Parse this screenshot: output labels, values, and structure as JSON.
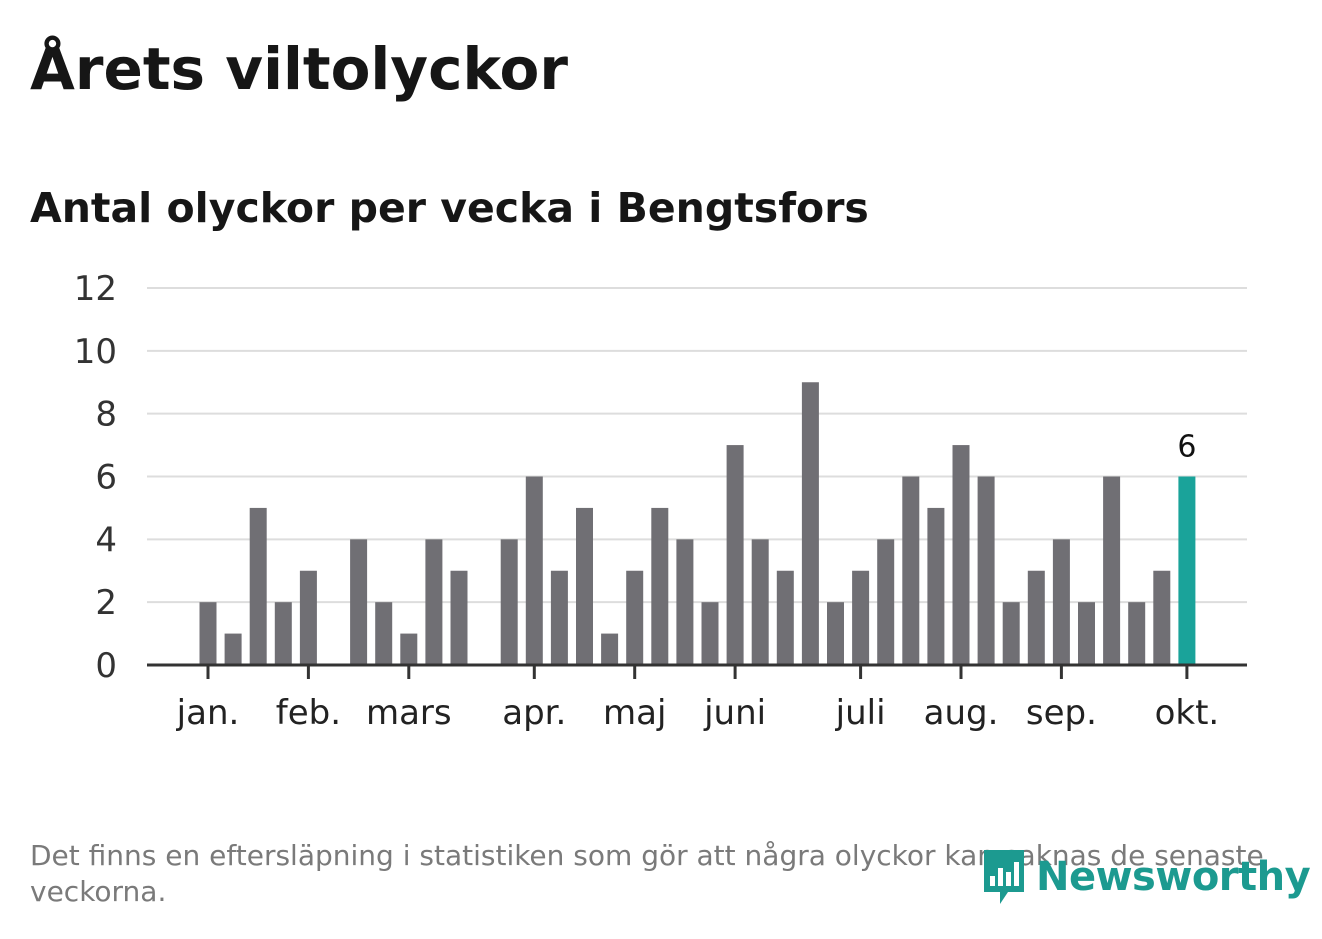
{
  "title": "Årets viltolyckor",
  "subtitle": "Antal olyckor per vecka i Bengtsfors",
  "note": "Det finns en eftersläpning i statistiken som gör att några olyckor kan saknas de senaste veckorna.",
  "brand": "Newsworthy",
  "colors": {
    "bar": "#706f74",
    "highlight": "#1aa39a",
    "grid": "#dddddd",
    "axis": "#333333"
  },
  "chart_data": {
    "type": "bar",
    "title": "Antal olyckor per vecka i Bengtsfors",
    "xlabel": "",
    "ylabel": "",
    "ylim": [
      0,
      12
    ],
    "yticks": [
      "0",
      "2",
      "4",
      "6",
      "8",
      "10",
      "12"
    ],
    "grid": true,
    "weeks": [
      1,
      2,
      3,
      4,
      5,
      6,
      7,
      8,
      9,
      10,
      11,
      12,
      13,
      14,
      15,
      16,
      17,
      18,
      19,
      20,
      21,
      22,
      23,
      24,
      25,
      26,
      27,
      28,
      29,
      30,
      31,
      32,
      33,
      34,
      35,
      36,
      37,
      38,
      39,
      40
    ],
    "values": [
      2,
      1,
      5,
      2,
      3,
      0,
      4,
      2,
      1,
      4,
      3,
      0,
      4,
      6,
      3,
      5,
      1,
      3,
      5,
      4,
      2,
      7,
      4,
      3,
      9,
      2,
      3,
      4,
      6,
      5,
      7,
      6,
      2,
      3,
      4,
      2,
      6,
      2,
      3,
      6
    ],
    "highlight_index": 39,
    "highlight_label": "6",
    "month_labels": [
      {
        "label": "jan.",
        "week": 1
      },
      {
        "label": "feb.",
        "week": 5
      },
      {
        "label": "mars",
        "week": 9
      },
      {
        "label": "apr.",
        "week": 14
      },
      {
        "label": "maj",
        "week": 18
      },
      {
        "label": "juni",
        "week": 22
      },
      {
        "label": "juli",
        "week": 27
      },
      {
        "label": "aug.",
        "week": 31
      },
      {
        "label": "sep.",
        "week": 35
      },
      {
        "label": "okt.",
        "week": 40
      }
    ]
  }
}
